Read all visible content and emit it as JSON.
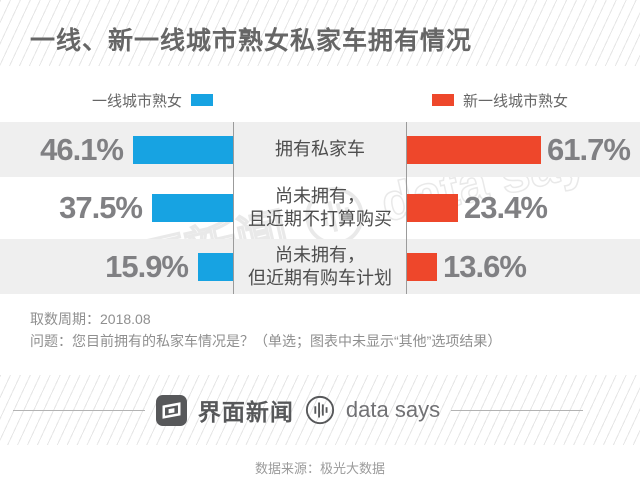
{
  "title": "一线、新一线城市熟女私家车拥有情况",
  "legend": {
    "left": {
      "label": "一线城市熟女",
      "color": "#17a3e2"
    },
    "right": {
      "label": "新一线城市熟女",
      "color": "#ee472b"
    }
  },
  "chart_data": {
    "type": "bar",
    "orientation": "horizontal-diverging",
    "categories": [
      "拥有私家车",
      "尚未拥有，且近期不打算购买",
      "尚未拥有，但近期有购车计划"
    ],
    "series": [
      {
        "name": "一线城市熟女",
        "color": "#17a3e2",
        "values": [
          46.1,
          37.5,
          15.9
        ]
      },
      {
        "name": "新一线城市熟女",
        "color": "#ee472b",
        "values": [
          61.7,
          23.4,
          13.6
        ]
      }
    ],
    "value_suffix": "%",
    "xlim": [
      0,
      65
    ],
    "grid": false,
    "legend_position": "top"
  },
  "rows": [
    {
      "left_pct": 46.1,
      "left_label": "46.1%",
      "category_lines": [
        "拥有私家车"
      ],
      "right_pct": 61.7,
      "right_label": "61.7%"
    },
    {
      "left_pct": 37.5,
      "left_label": "37.5%",
      "category_lines": [
        "尚未拥有，",
        "且近期不打算购买"
      ],
      "right_pct": 23.4,
      "right_label": "23.4%"
    },
    {
      "left_pct": 15.9,
      "left_label": "15.9%",
      "category_lines": [
        "尚未拥有，",
        "但近期有购车计划"
      ],
      "right_pct": 13.6,
      "right_label": "13.6%"
    }
  ],
  "notes": [
    "取数周期：2018.08",
    "问题：您目前拥有的私家车情况是？（单选；图表中未显示“其他”选项结果）"
  ],
  "footer": {
    "brand_cn": "界面新闻",
    "brand_en": "data says",
    "source": "数据来源：极光大数据"
  },
  "colors": {
    "tier1_blue": "#17a3e2",
    "new_tier1_red": "#ee472b",
    "row_band_gray": "#efefef",
    "divider_gray": "#9b9b9b",
    "percent_text_gray": "#808083"
  }
}
